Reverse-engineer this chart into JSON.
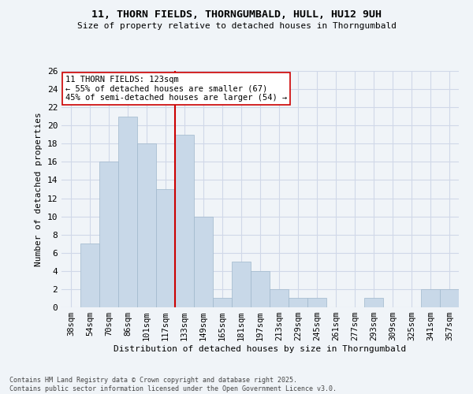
{
  "title_line1": "11, THORN FIELDS, THORNGUMBALD, HULL, HU12 9UH",
  "title_line2": "Size of property relative to detached houses in Thorngumbald",
  "xlabel": "Distribution of detached houses by size in Thorngumbald",
  "ylabel": "Number of detached properties",
  "categories": [
    "38sqm",
    "54sqm",
    "70sqm",
    "86sqm",
    "101sqm",
    "117sqm",
    "133sqm",
    "149sqm",
    "165sqm",
    "181sqm",
    "197sqm",
    "213sqm",
    "229sqm",
    "245sqm",
    "261sqm",
    "277sqm",
    "293sqm",
    "309sqm",
    "325sqm",
    "341sqm",
    "357sqm"
  ],
  "values": [
    0,
    7,
    16,
    21,
    18,
    13,
    19,
    10,
    1,
    5,
    4,
    2,
    1,
    1,
    0,
    0,
    1,
    0,
    0,
    2,
    2
  ],
  "bar_color": "#c8d8e8",
  "bar_edge_color": "#a0b8cc",
  "grid_color": "#d0d8e8",
  "background_color": "#f0f4f8",
  "vline_x_index": 5,
  "vline_color": "#cc0000",
  "annotation_line1": "11 THORN FIELDS: 123sqm",
  "annotation_line2": "← 55% of detached houses are smaller (67)",
  "annotation_line3": "45% of semi-detached houses are larger (54) →",
  "annotation_box_color": "#ffffff",
  "annotation_box_edge": "#cc0000",
  "ylim": [
    0,
    26
  ],
  "yticks": [
    0,
    2,
    4,
    6,
    8,
    10,
    12,
    14,
    16,
    18,
    20,
    22,
    24,
    26
  ],
  "footer_line1": "Contains HM Land Registry data © Crown copyright and database right 2025.",
  "footer_line2": "Contains public sector information licensed under the Open Government Licence v3.0."
}
